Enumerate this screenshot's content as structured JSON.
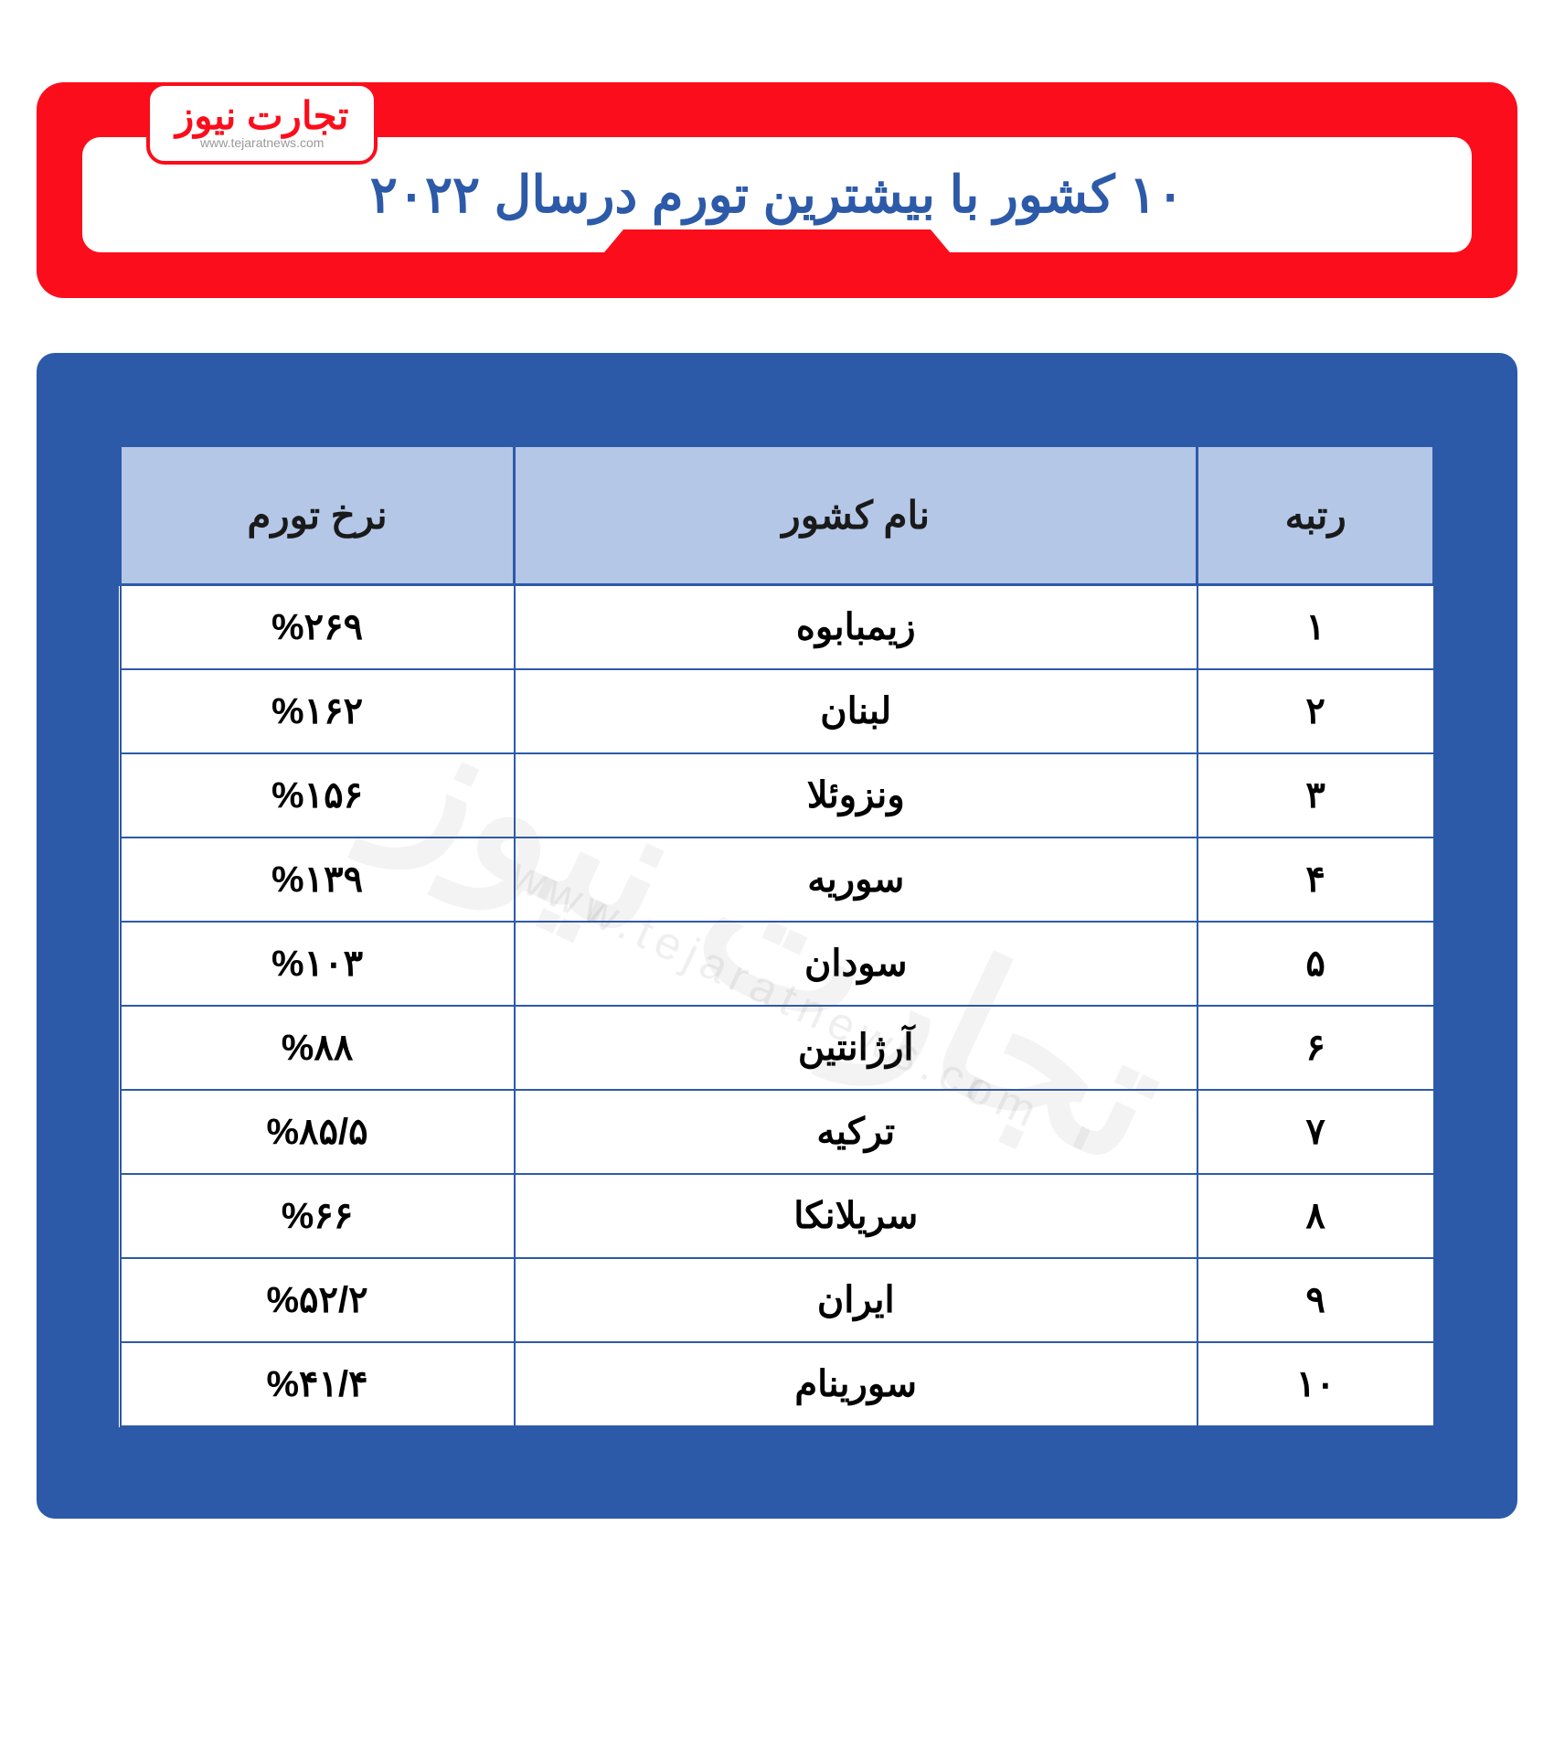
{
  "logo": {
    "main": "تجارت نیوز",
    "sub": "www.tejaratnews.com"
  },
  "title": "۱۰ کشور با بیشترین تورم درسال ۲۰۲۲",
  "table": {
    "columns": {
      "rank": "رتبه",
      "country": "نام کشور",
      "rate": "نرخ تورم"
    },
    "rows": [
      {
        "rank": "۱",
        "country": "زیمبابوه",
        "rate": "%۲۶۹"
      },
      {
        "rank": "۲",
        "country": "لبنان",
        "rate": "%۱۶۲"
      },
      {
        "rank": "۳",
        "country": "ونزوئلا",
        "rate": "%۱۵۶"
      },
      {
        "rank": "۴",
        "country": "سوریه",
        "rate": "%۱۳۹"
      },
      {
        "rank": "۵",
        "country": "سودان",
        "rate": "%۱۰۳"
      },
      {
        "rank": "۶",
        "country": "آرژانتین",
        "rate": "%۸۸"
      },
      {
        "rank": "۷",
        "country": "ترکیه",
        "rate": "%۸۵/۵"
      },
      {
        "rank": "۸",
        "country": "سریلانکا",
        "rate": "%۶۶"
      },
      {
        "rank": "۹",
        "country": "ایران",
        "rate": "%۵۲/۲"
      },
      {
        "rank": "۱۰",
        "country": "سورینام",
        "rate": "%۴۱/۴"
      }
    ]
  },
  "watermark": {
    "logo": "تجارت نیوز",
    "url": "www.tejaratnews.com"
  },
  "colors": {
    "red": "#fb0d1b",
    "blue": "#2d5aa8",
    "header_bg": "#b4c7e7",
    "white": "#ffffff",
    "text": "#000000"
  }
}
